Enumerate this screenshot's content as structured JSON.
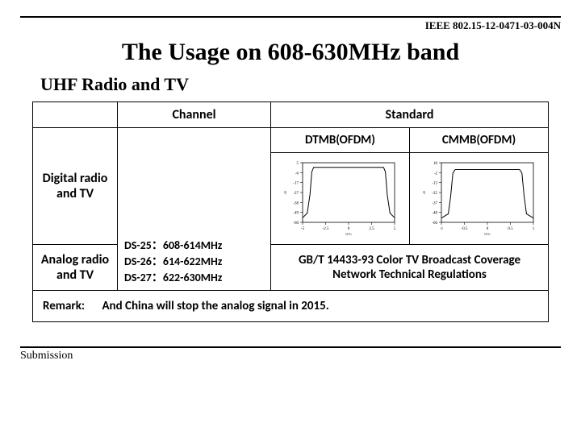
{
  "doc_id": "IEEE 802.15-12-0471-03-004N",
  "title": "The Usage on 608-630MHz band",
  "subtitle": "UHF Radio and TV",
  "table": {
    "headers": {
      "channel": "Channel",
      "standard": "Standard"
    },
    "std_sub": {
      "dtmb": "DTMB(OFDM)",
      "cmmb": "CMMB(OFDM)"
    },
    "row_digital": "Digital radio and TV",
    "row_analog": "Analog radio and TV",
    "channels": [
      "DS-25：608-614MHz",
      "DS-26：614-622MHz",
      "DS-27：622-630MHz"
    ],
    "gbt": "GB/T 14433-93 Color TV Broadcast Coverage Network Technical Regulations",
    "remark_label": "Remark:",
    "remark_text": "And China will stop the analog signal in 2015."
  },
  "charts": {
    "dtmb": {
      "axis_color": "#000000",
      "line_color": "#000000",
      "bg": "#ffffff",
      "xlim": [
        -5,
        5
      ],
      "ylim": [
        -60,
        5
      ],
      "curve": [
        [
          -5,
          -55
        ],
        [
          -4.5,
          -50
        ],
        [
          -4.2,
          -30
        ],
        [
          -4,
          -5
        ],
        [
          -3.8,
          0
        ],
        [
          -3,
          0
        ],
        [
          0,
          0
        ],
        [
          3,
          0
        ],
        [
          3.8,
          0
        ],
        [
          4,
          -5
        ],
        [
          4.2,
          -30
        ],
        [
          4.5,
          -50
        ],
        [
          5,
          -55
        ]
      ]
    },
    "cmmb": {
      "axis_color": "#000000",
      "line_color": "#000000",
      "bg": "#ffffff",
      "xlim": [
        -1,
        1
      ],
      "ylim": [
        -60,
        10
      ],
      "curve": [
        [
          -1,
          -55
        ],
        [
          -0.85,
          -50
        ],
        [
          -0.8,
          -30
        ],
        [
          -0.75,
          -2
        ],
        [
          -0.7,
          2
        ],
        [
          -0.5,
          2
        ],
        [
          0,
          2
        ],
        [
          0.5,
          2
        ],
        [
          0.7,
          2
        ],
        [
          0.75,
          -2
        ],
        [
          0.8,
          -30
        ],
        [
          0.85,
          -50
        ],
        [
          1,
          -55
        ]
      ]
    }
  },
  "footer": "Submission"
}
